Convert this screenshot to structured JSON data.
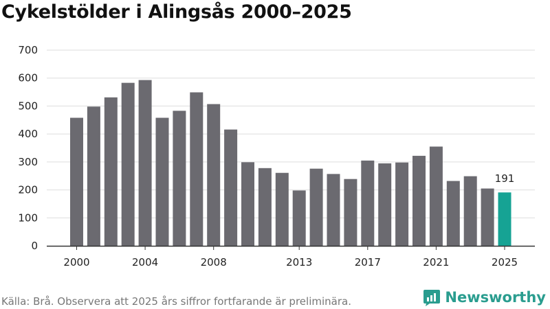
{
  "chart_data": {
    "type": "bar",
    "title": "Cykelstölder i Alingsås 2000–2025",
    "xlabel": "",
    "ylabel": "",
    "ylim": [
      0,
      700
    ],
    "yticks": [
      0,
      100,
      200,
      300,
      400,
      500,
      600,
      700
    ],
    "xtick_labels": [
      "2000",
      "2004",
      "2008",
      "2013",
      "2017",
      "2021",
      "2025"
    ],
    "categories": [
      "2000",
      "2001",
      "2002",
      "2003",
      "2004",
      "2005",
      "2006",
      "2007",
      "2008",
      "2009",
      "2010",
      "2011",
      "2012",
      "2013",
      "2014",
      "2015",
      "2016",
      "2017",
      "2018",
      "2019",
      "2020",
      "2021",
      "2022",
      "2023",
      "2024",
      "2025"
    ],
    "values": [
      458,
      498,
      531,
      583,
      593,
      458,
      483,
      549,
      507,
      416,
      299,
      278,
      261,
      198,
      276,
      257,
      239,
      305,
      295,
      298,
      322,
      355,
      232,
      249,
      205,
      191
    ],
    "highlight": {
      "category": "2025",
      "label": "191"
    },
    "grid": true,
    "colors": {
      "bar": "#6b6a70",
      "highlight": "#16a394",
      "grid": "#dddddd",
      "axis": "#333333"
    }
  },
  "footer": {
    "source": "Källa: Brå. Observera att 2025 års siffror fortfarande är preliminära.",
    "brand": "Newsworthy"
  }
}
